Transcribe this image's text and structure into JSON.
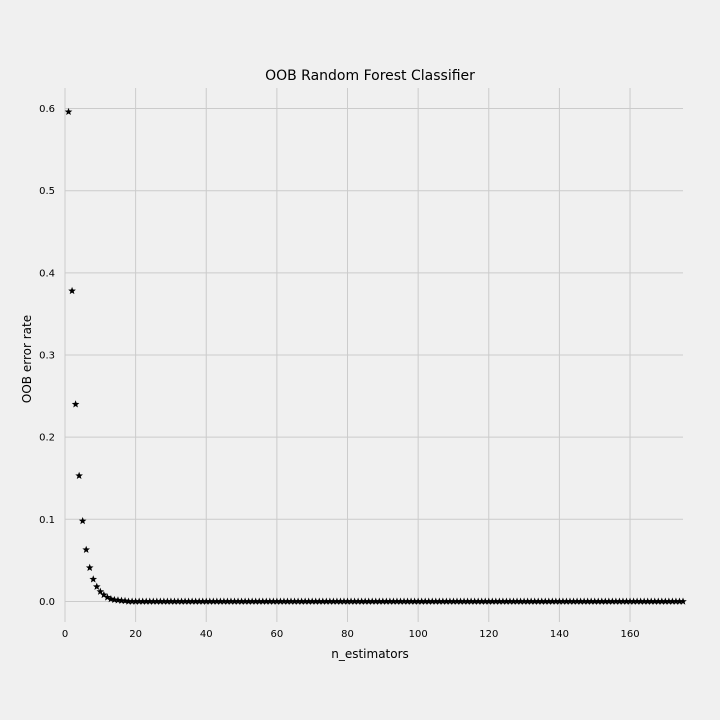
{
  "chart_data": {
    "type": "scatter",
    "title": "OOB Random Forest Classifier",
    "xlabel": "n_estimators",
    "ylabel": "OOB error rate",
    "xlim": [
      0,
      175
    ],
    "ylim": [
      -0.025,
      0.625
    ],
    "xticks": [
      0,
      20,
      40,
      60,
      80,
      100,
      120,
      140,
      160
    ],
    "yticks": [
      0.0,
      0.1,
      0.2,
      0.3,
      0.4,
      0.5,
      0.6
    ],
    "ytick_labels": [
      "0.0",
      "0.1",
      "0.2",
      "0.3",
      "0.4",
      "0.5",
      "0.6"
    ],
    "grid": true,
    "marker": "star",
    "marker_color": "#000000",
    "background_color": "#f0f0f0",
    "grid_color": "#cbcbcb",
    "series": [
      {
        "x_range": [
          1,
          175
        ],
        "head_values": [
          0.596,
          0.378,
          0.24,
          0.153,
          0.098,
          0.063,
          0.041,
          0.027,
          0.018,
          0.012,
          0.008,
          0.005,
          0.003,
          0.002,
          0.0015,
          0.001,
          0.0007
        ],
        "tail_value": 0.0
      }
    ]
  }
}
